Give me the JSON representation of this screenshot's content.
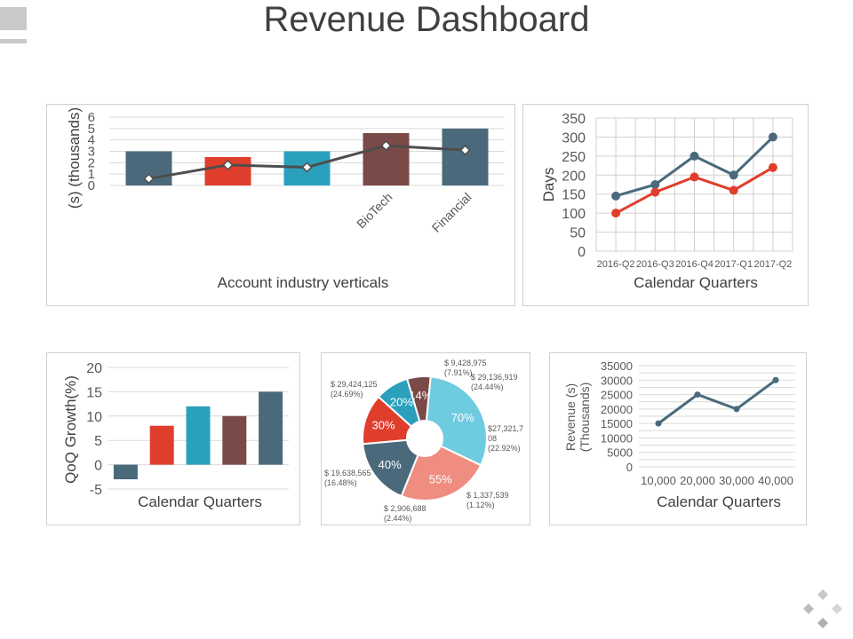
{
  "title": "Revenue Dashboard",
  "colors": {
    "slate": "#4a6a7c",
    "red": "#e03e2d",
    "teal": "#2aa0bd",
    "brown": "#7a4a48",
    "lightblue": "#6fcbe0",
    "salmon": "#ef8d80",
    "darkline": "#4d4d4d"
  },
  "chart_data": [
    {
      "type": "bar",
      "ylabel": "(s) (thousands)",
      "xlabel": "Account industry verticals",
      "ylim": [
        0,
        6
      ],
      "yticks": [
        0,
        1,
        2,
        3,
        4,
        5,
        6
      ],
      "categories": [
        "",
        "",
        "",
        "BioTech",
        "Financial"
      ],
      "series": [
        {
          "values": [
            3.0,
            2.5,
            3.0,
            4.6,
            5.0
          ]
        },
        {
          "type": "line",
          "values": [
            0.6,
            1.8,
            1.6,
            3.5,
            3.1
          ]
        }
      ],
      "bar_colors": [
        "#4a6a7c",
        "#e03e2d",
        "#2aa0bd",
        "#7a4a48",
        "#4a6a7c"
      ]
    },
    {
      "type": "line",
      "ylabel": "Days",
      "xlabel": "Calendar Quarters",
      "ylim": [
        0,
        350
      ],
      "yticks": [
        0,
        50,
        100,
        150,
        200,
        250,
        300,
        350
      ],
      "categories": [
        "2016-Q2",
        "2016-Q3",
        "2016-Q4",
        "2017-Q1",
        "2017-Q2"
      ],
      "series": [
        {
          "values": [
            145,
            175,
            250,
            200,
            300
          ],
          "color": "#4a6a7c"
        },
        {
          "values": [
            100,
            155,
            195,
            160,
            220
          ],
          "color": "#e03e2d"
        }
      ],
      "grid": true
    },
    {
      "type": "bar",
      "ylabel": "QoQ Growth(%)",
      "xlabel": "Calendar Quarters",
      "ylim": [
        -5,
        20
      ],
      "yticks": [
        -5,
        0,
        5,
        10,
        15,
        20
      ],
      "categories": [
        "",
        "",
        "",
        "",
        ""
      ],
      "series": [
        {
          "values": [
            -3,
            8,
            12,
            10,
            15
          ]
        }
      ],
      "bar_colors": [
        "#4a6a7c",
        "#e03e2d",
        "#2aa0bd",
        "#7a4a48",
        "#4a6a7c"
      ]
    },
    {
      "type": "pie",
      "slices": [
        {
          "label": "14%",
          "value": 14,
          "color": "#7a4a48",
          "callout": [
            "$ 9,428,975",
            "(7.91%)"
          ]
        },
        {
          "label": "70%",
          "value": 70,
          "color": "#6fcbe0",
          "callout": [
            "$ 29,136,919",
            "(24.44%)"
          ]
        },
        {
          "label": "55%",
          "value": 55,
          "color": "#ef8d80",
          "callout": [
            "$27,321,7",
            "08",
            "(22.92%)"
          ]
        },
        {
          "label": "40%",
          "value": 40,
          "color": "#4a6a7c",
          "callout": [
            "$ 1,337,539",
            "(1.12%)"
          ]
        },
        {
          "label": "30%",
          "value": 30,
          "color": "#e03e2d",
          "callout": [
            "$ 19,638,565",
            "(16.48%)"
          ]
        },
        {
          "label": "20%",
          "value": 20,
          "color": "#2aa0bd",
          "callout": [
            "$ 29,424,125",
            "(24.69%)"
          ]
        }
      ],
      "extra_callout": [
        "$ 2,906,688",
        "(2.44%)"
      ]
    },
    {
      "type": "line",
      "ylabel": "Revenue (s) (Thousands)",
      "ylabel_lines": [
        "Revenue (s)",
        "(Thousands)"
      ],
      "xlabel": "Calendar Quarters",
      "ylim": [
        0,
        35000
      ],
      "yticks": [
        0,
        5000,
        10000,
        15000,
        20000,
        25000,
        30000,
        35000
      ],
      "categories": [
        "10,000",
        "20,000",
        "30,000",
        "40,000"
      ],
      "series": [
        {
          "values": [
            15000,
            25000,
            20000,
            30000
          ],
          "color": "#4a6a7c"
        }
      ],
      "grid": true
    }
  ]
}
